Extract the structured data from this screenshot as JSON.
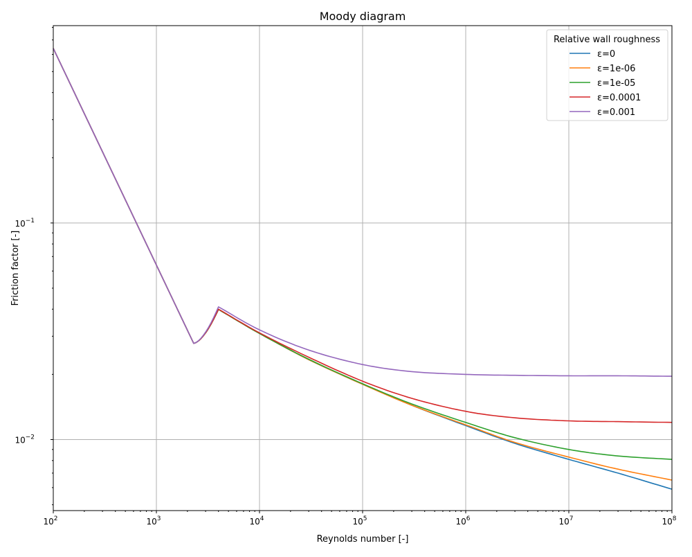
{
  "chart_data": {
    "type": "line",
    "title": "Moody diagram",
    "xlabel": "Reynolds number [-]",
    "ylabel": "Friction factor [-]",
    "xscale": "log",
    "yscale": "log",
    "xlim": [
      100,
      100000000
    ],
    "ylim": [
      0.0047,
      0.815
    ],
    "grid": true,
    "legend_position": "upper right",
    "legend_title": "Relative wall roughness",
    "x_ticks": [
      {
        "value": 100,
        "base": "10",
        "exp": "2"
      },
      {
        "value": 1000,
        "base": "10",
        "exp": "3"
      },
      {
        "value": 10000,
        "base": "10",
        "exp": "4"
      },
      {
        "value": 100000,
        "base": "10",
        "exp": "5"
      },
      {
        "value": 1000000,
        "base": "10",
        "exp": "6"
      },
      {
        "value": 10000000,
        "base": "10",
        "exp": "7"
      },
      {
        "value": 100000000,
        "base": "10",
        "exp": "8"
      }
    ],
    "y_ticks": [
      {
        "value": 0.1,
        "base": "10",
        "exp": "−1"
      },
      {
        "value": 0.01,
        "base": "10",
        "exp": "−2"
      }
    ],
    "laminar": {
      "re": [
        100,
        1000,
        2300
      ],
      "f": [
        0.64,
        0.064,
        0.0278
      ]
    },
    "series": [
      {
        "name": "ε=0",
        "label": "ε=0",
        "color": "#1f77b4",
        "re": [
          4000,
          10000,
          30000,
          100000,
          300000,
          1000000,
          3000000,
          10000000,
          30000000,
          100000000
        ],
        "f": [
          0.0399,
          0.0309,
          0.0234,
          0.018,
          0.0144,
          0.0116,
          0.0096,
          0.0081,
          0.007,
          0.0059
        ]
      },
      {
        "name": "ε=1e-06",
        "label": "ε=1e-06",
        "color": "#ff7f0e",
        "re": [
          4000,
          10000,
          30000,
          100000,
          300000,
          1000000,
          3000000,
          10000000,
          30000000,
          100000000
        ],
        "f": [
          0.0399,
          0.0309,
          0.0234,
          0.018,
          0.0144,
          0.0117,
          0.0097,
          0.0083,
          0.0073,
          0.0065
        ]
      },
      {
        "name": "ε=1e-05",
        "label": "ε=1e-05",
        "color": "#2ca02c",
        "re": [
          4000,
          10000,
          30000,
          100000,
          300000,
          1000000,
          3000000,
          10000000,
          30000000,
          100000000
        ],
        "f": [
          0.0399,
          0.0309,
          0.0235,
          0.0181,
          0.0146,
          0.012,
          0.0102,
          0.009,
          0.0084,
          0.0081
        ]
      },
      {
        "name": "ε=0.0001",
        "label": "ε=0.0001",
        "color": "#d62728",
        "re": [
          4000,
          10000,
          30000,
          100000,
          300000,
          1000000,
          3000000,
          10000000,
          30000000,
          100000000
        ],
        "f": [
          0.04,
          0.0311,
          0.024,
          0.0186,
          0.0155,
          0.0135,
          0.0126,
          0.0122,
          0.0121,
          0.012
        ]
      },
      {
        "name": "ε=0.001",
        "label": "ε=0.001",
        "color": "#9467bd",
        "re": [
          4000,
          10000,
          30000,
          100000,
          300000,
          1000000,
          3000000,
          10000000,
          30000000,
          100000000
        ],
        "f": [
          0.041,
          0.0321,
          0.0259,
          0.0222,
          0.0206,
          0.02,
          0.0198,
          0.0197,
          0.0197,
          0.0196
        ]
      }
    ]
  }
}
